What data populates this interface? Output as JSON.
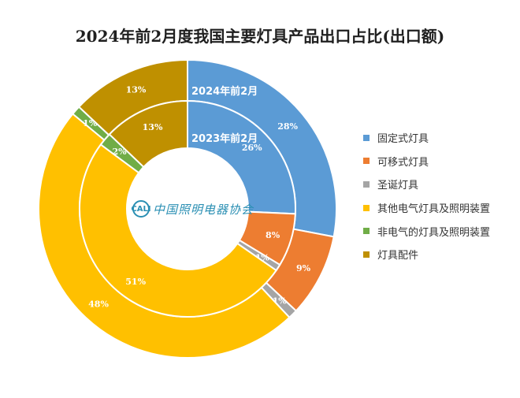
{
  "chart_data": {
    "type": "pie",
    "title": "2024年前2月度我国主要灯具产品出口占比(出口额)",
    "categories": [
      "固定式灯具",
      "可移式灯具",
      "圣诞灯具",
      "其他电气灯具及照明装置",
      "非电气的灯具及照明装置",
      "灯具配件"
    ],
    "colors": [
      "#5b9bd5",
      "#ed7d31",
      "#a5a5a5",
      "#ffc000",
      "#70ad47",
      "#bf9000"
    ],
    "series": [
      {
        "name": "2024年前2月",
        "ring": "outer",
        "values": [
          28,
          9,
          1,
          48,
          1,
          13
        ]
      },
      {
        "name": "2023年前2月",
        "ring": "inner",
        "values": [
          26,
          8,
          1,
          51,
          2,
          13
        ]
      }
    ],
    "legend_position": "right"
  },
  "logo": {
    "mark": "CALI",
    "text": "中国照明电器协会"
  }
}
